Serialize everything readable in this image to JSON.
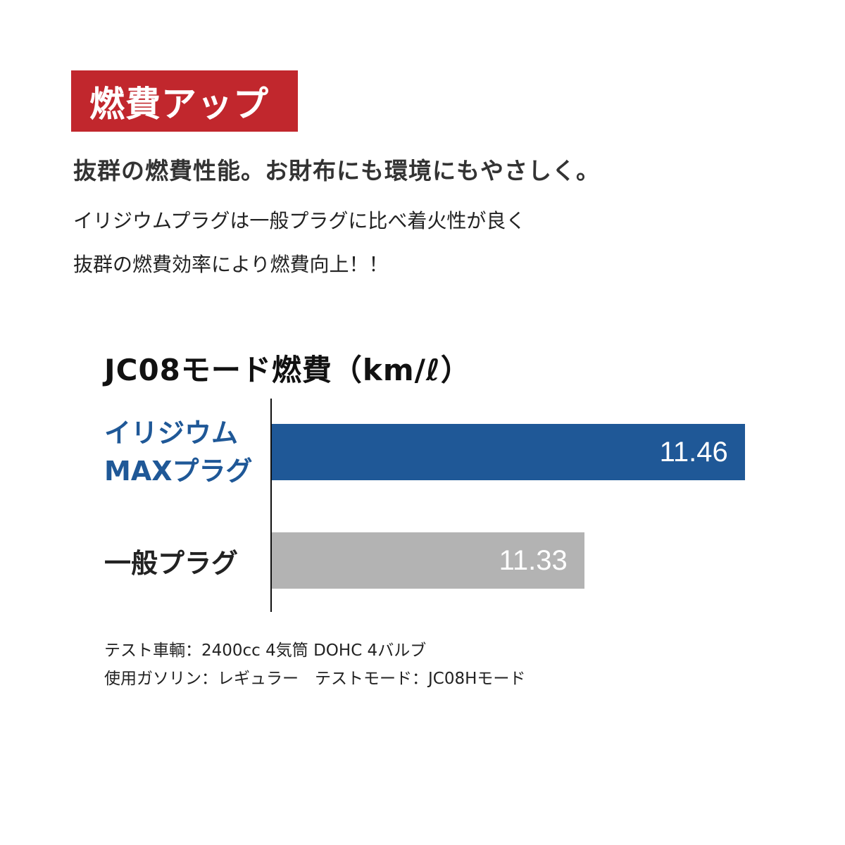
{
  "badge": {
    "text": "燃費アップ",
    "color": "#c1272d"
  },
  "headline": "抜群の燃費性能。お財布にも環境にもやさしく。",
  "body": [
    "イリジウムプラグは一般プラグに比べ着火性が良く",
    "抜群の燃費効率により燃費向上！！"
  ],
  "chart_data": {
    "type": "bar",
    "orientation": "horizontal",
    "title": "JC08モード燃費（km/ℓ）",
    "categories": [
      "イリジウム MAXプラグ",
      "一般プラグ"
    ],
    "category_lines": [
      [
        "イリジウム",
        "MAXプラグ"
      ],
      [
        "一般プラグ"
      ]
    ],
    "values": [
      11.46,
      11.33
    ],
    "value_labels": [
      "11.46",
      "11.33"
    ],
    "colors": [
      "#1f5897",
      "#b3b3b3"
    ],
    "category_colors": [
      "#1f5897",
      "#222222"
    ],
    "grid": false
  },
  "notes": [
    "テスト車輌：2400cc 4気筒 DOHC 4バルブ",
    "使用ガソリン：レギュラー　テストモード：JC08Hモード"
  ]
}
